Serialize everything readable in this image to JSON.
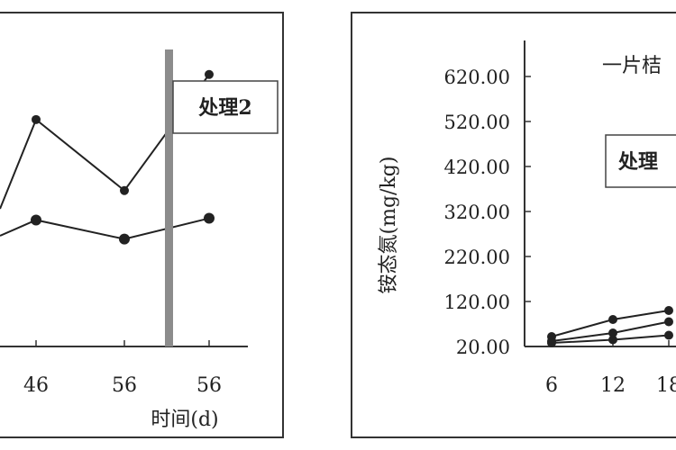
{
  "chart_data": [
    {
      "type": "line",
      "title": "",
      "xlabel": "时间(d)",
      "ylabel": "",
      "categories": [
        "46",
        "56",
        "56"
      ],
      "marker": "circle",
      "series": [
        {
          "values": [
            262,
            180,
            314
          ],
          "color": "#222222"
        },
        {
          "values": [
            146,
            124,
            148
          ],
          "color": "#222222"
        }
      ],
      "annotation": {
        "text": "处理2"
      },
      "divider_color": "#888888",
      "grid": false
    },
    {
      "type": "line",
      "title": "",
      "xlabel": "",
      "ylabel": "铵态氮(mg/kg)",
      "categories": [
        "6",
        "12",
        "18"
      ],
      "yticks": [
        "620.00",
        "520.00",
        "420.00",
        "320.00",
        "220.00",
        "120.00",
        "20.00"
      ],
      "ylim": [
        20,
        620
      ],
      "legend_text": "一片桔",
      "annotation": {
        "text": "处理"
      },
      "series": [
        {
          "values": [
            42,
            80,
            100
          ],
          "color": "#222222"
        },
        {
          "values": [
            32,
            50,
            75
          ],
          "color": "#222222"
        },
        {
          "values": [
            28,
            35,
            45
          ],
          "color": "#222222"
        }
      ],
      "grid": false
    }
  ]
}
